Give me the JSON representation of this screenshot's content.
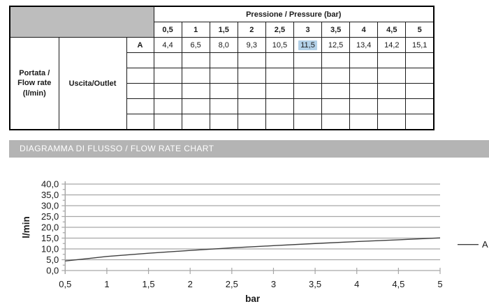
{
  "table": {
    "pressure_header": "Pressione / Pressure (bar)",
    "pressure_columns": [
      "0,5",
      "1",
      "1,5",
      "2",
      "2,5",
      "3",
      "3,5",
      "4",
      "4,5",
      "5"
    ],
    "row_group_label": "Portata /\nFlow rate\n(l/min)",
    "outlet_label": "Uscita/Outlet",
    "rows": [
      {
        "letter": "A",
        "values": [
          "4,4",
          "6,5",
          "8,0",
          "9,3",
          "10,5",
          "11,5",
          "12,5",
          "13,4",
          "14,2",
          "15,1"
        ],
        "highlighted_index": 5
      }
    ],
    "empty_row_count": 5,
    "header_bg": "#bdbdbd",
    "highlight_color": "#b3d1e8"
  },
  "section_banner": {
    "title": "DIAGRAMMA DI FLUSSO / FLOW RATE CHART",
    "bg": "#b4b4b4",
    "text_color": "#ffffff"
  },
  "chart_data": {
    "type": "line",
    "title": "",
    "xlabel": "bar",
    "ylabel": "l/min",
    "x": [
      0.5,
      1,
      1.5,
      2,
      2.5,
      3,
      3.5,
      4,
      4.5,
      5
    ],
    "x_tick_labels": [
      "0,5",
      "1",
      "1,5",
      "2",
      "2,5",
      "3",
      "3,5",
      "4",
      "4,5",
      "5"
    ],
    "ylim": [
      0,
      40
    ],
    "y_tick_step": 5,
    "y_minor_tick_step": 2.5,
    "y_tick_labels": [
      "0,0",
      "5,0",
      "10,0",
      "15,0",
      "20,0",
      "25,0",
      "30,0",
      "35,0",
      "40,0"
    ],
    "grid": true,
    "grid_color": "#a6a6a6",
    "legend_position": "right",
    "series": [
      {
        "name": "A",
        "values": [
          4.4,
          6.5,
          8.0,
          9.3,
          10.5,
          11.5,
          12.5,
          13.4,
          14.2,
          15.1
        ],
        "color": "#3f3f3f"
      }
    ]
  }
}
